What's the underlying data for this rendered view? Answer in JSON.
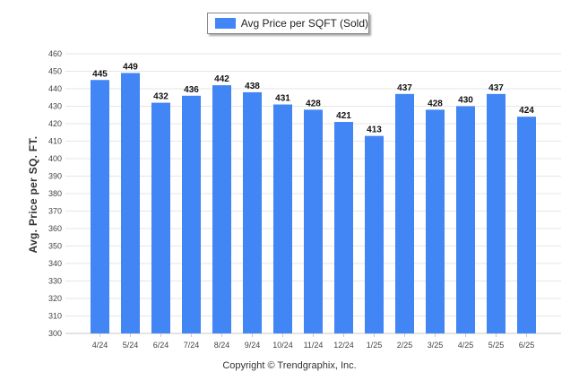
{
  "legend": {
    "label": "Avg Price per SQFT (Sold)"
  },
  "copyright": "Copyright © Trendgraphix, Inc.",
  "colors": {
    "bar": "#4285f4",
    "grid": "#e6e6e6"
  },
  "chart_data": {
    "type": "bar",
    "title": "",
    "xlabel": "",
    "ylabel": "Avg. Price per SQ. FT.",
    "ylim": [
      300,
      460
    ],
    "ytick_step": 10,
    "grid": true,
    "legend_position": "top-center",
    "categories": [
      "4/24",
      "5/24",
      "6/24",
      "7/24",
      "8/24",
      "9/24",
      "10/24",
      "11/24",
      "12/24",
      "1/25",
      "2/25",
      "3/25",
      "4/25",
      "5/25",
      "6/25"
    ],
    "series": [
      {
        "name": "Avg Price per SQFT (Sold)",
        "values": [
          445,
          449,
          432,
          436,
          442,
          438,
          431,
          428,
          421,
          413,
          437,
          428,
          430,
          437,
          424
        ]
      }
    ]
  }
}
